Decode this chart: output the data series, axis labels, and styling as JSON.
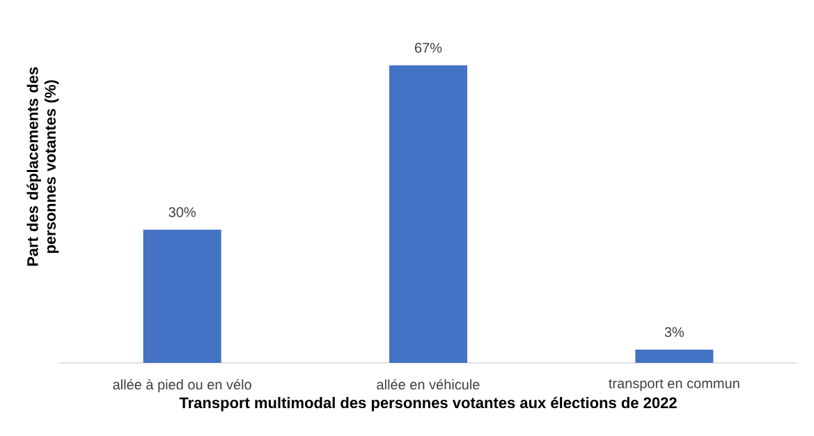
{
  "chart_data": {
    "type": "bar",
    "categories": [
      "allée à pied ou en vélo",
      "allée en véhicule",
      "transport en commun"
    ],
    "values": [
      30,
      67,
      3
    ],
    "value_labels": [
      "30%",
      "67%",
      "3%"
    ],
    "color": "#4472c4",
    "xlabel": "Transport multimodal des personnes votantes aux élections de 2022",
    "ylabel": "Part des déplacements des personnes votantes (%)"
  }
}
